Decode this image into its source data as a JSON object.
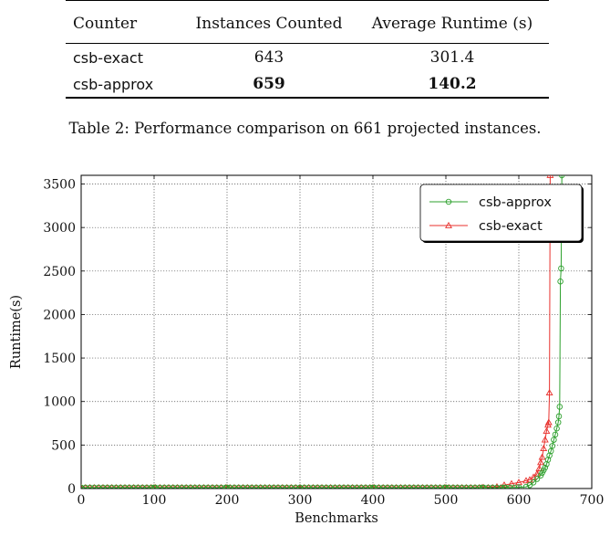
{
  "table": {
    "headers": [
      "Counter",
      "Instances Counted",
      "Average Runtime (s)"
    ],
    "rows": [
      {
        "counter": "csb-exact",
        "instances": "643",
        "runtime": "301.4"
      },
      {
        "counter": "csb-approx",
        "instances": "659",
        "runtime": "140.2"
      }
    ],
    "caption": "Table 2: Performance comparison on 661 projected instances."
  },
  "chart_data": {
    "type": "line",
    "xlabel": "Benchmarks",
    "ylabel": "Runtime(s)",
    "xlim": [
      0,
      700
    ],
    "ylim": [
      0,
      3600
    ],
    "xticks": [
      0,
      100,
      200,
      300,
      400,
      500,
      600,
      700
    ],
    "yticks": [
      0,
      500,
      1000,
      1500,
      2000,
      2500,
      3000,
      3500
    ],
    "grid": true,
    "legend_position": "top-right",
    "series": [
      {
        "name": "csb-approx",
        "color": "#2ca02c",
        "marker": "circle",
        "x": [
          0,
          100,
          200,
          300,
          400,
          500,
          550,
          580,
          600,
          610,
          615,
          620,
          625,
          630,
          632,
          634,
          636,
          638,
          640,
          642,
          644,
          646,
          648,
          650,
          652,
          654,
          655,
          656,
          657,
          658,
          659
        ],
        "y": [
          10,
          10,
          10,
          10,
          10,
          10,
          10,
          10,
          15,
          20,
          40,
          70,
          110,
          150,
          180,
          210,
          240,
          280,
          330,
          380,
          430,
          490,
          560,
          620,
          690,
          760,
          830,
          940,
          2380,
          2530,
          3600
        ]
      },
      {
        "name": "csb-exact",
        "color": "#e8302c",
        "marker": "triangle",
        "x": [
          0,
          100,
          200,
          300,
          400,
          500,
          550,
          570,
          580,
          590,
          600,
          610,
          615,
          620,
          625,
          628,
          630,
          632,
          634,
          636,
          638,
          640,
          641,
          642,
          643
        ],
        "y": [
          10,
          10,
          10,
          10,
          10,
          10,
          12,
          20,
          40,
          55,
          70,
          90,
          100,
          130,
          170,
          230,
          300,
          360,
          460,
          560,
          660,
          730,
          760,
          1100,
          3600
        ]
      }
    ]
  }
}
